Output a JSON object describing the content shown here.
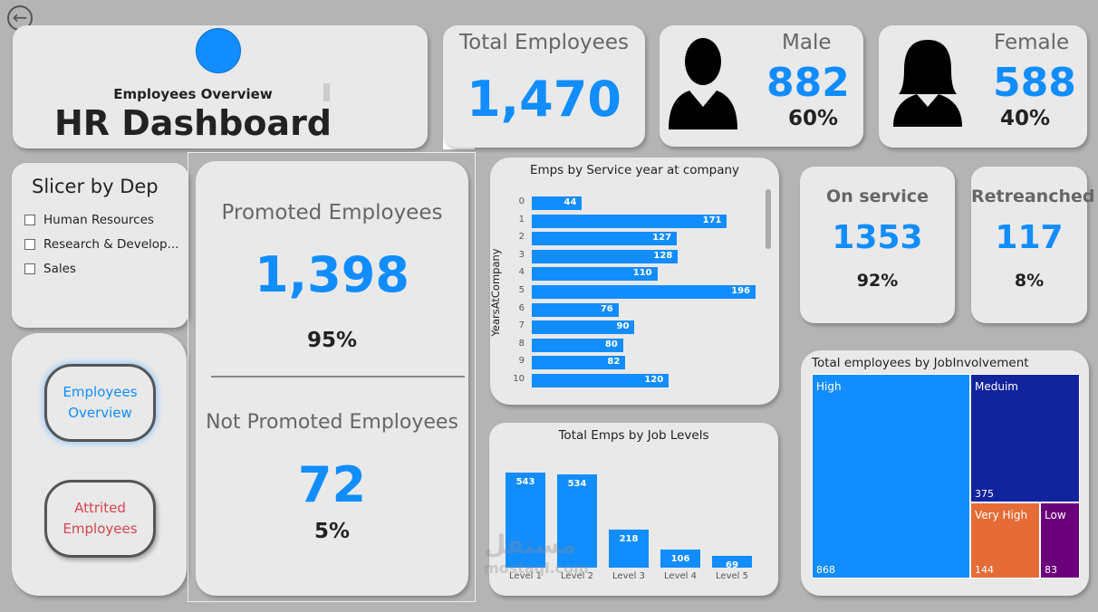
{
  "header": {
    "subtitle": "Employees Overview",
    "title": "HR Dashboard",
    "more_label": "..."
  },
  "total": {
    "label": "Total Employees",
    "value": "1,470"
  },
  "male": {
    "label": "Male",
    "value": "882",
    "pct": "60%"
  },
  "female": {
    "label": "Female",
    "value": "588",
    "pct": "40%"
  },
  "slicer": {
    "title": "Slicer by Dep",
    "items": [
      "Human Resources",
      "Research & Develop...",
      "Sales"
    ]
  },
  "promoted": {
    "label": "Promoted Employees",
    "value": "1,398",
    "pct": "95%",
    "not_label": "Not Promoted Employees",
    "not_value": "72",
    "not_pct": "5%"
  },
  "nav": {
    "overview": "Employees Overview",
    "attrited": "Attrited Employees"
  },
  "on_service": {
    "label": "On service",
    "value": "1353",
    "pct": "92%"
  },
  "retreanched": {
    "label": "Retreanched",
    "value": "117",
    "pct": "8%"
  },
  "watermark": {
    "arabic": "مستقل",
    "latin": "mostaql.com"
  },
  "colors": {
    "accent": "#118dff",
    "background": "#b4b4b4",
    "card": "#e9e9e9",
    "medium": "#12239e",
    "very_high": "#e66c37",
    "low": "#6b007b",
    "attrited": "#d64550"
  },
  "chart_data": [
    {
      "type": "bar",
      "orientation": "horizontal",
      "title": "Emps by Service year at company",
      "ylabel": "YearsAtCompany",
      "categories": [
        "0",
        "1",
        "2",
        "3",
        "4",
        "5",
        "6",
        "7",
        "8",
        "9",
        "10"
      ],
      "values": [
        44,
        171,
        127,
        128,
        110,
        196,
        76,
        90,
        80,
        82,
        120
      ]
    },
    {
      "type": "bar",
      "title": "Total Emps by Job Levels",
      "categories": [
        "Level 1",
        "Level 2",
        "Level 3",
        "Level 4",
        "Level 5"
      ],
      "values": [
        543,
        534,
        218,
        106,
        69
      ]
    },
    {
      "type": "treemap",
      "title": "Total employees by JobInvolvement",
      "categories": [
        "High",
        "Meduim",
        "Very High",
        "Low"
      ],
      "values": [
        868,
        375,
        144,
        83
      ]
    }
  ]
}
